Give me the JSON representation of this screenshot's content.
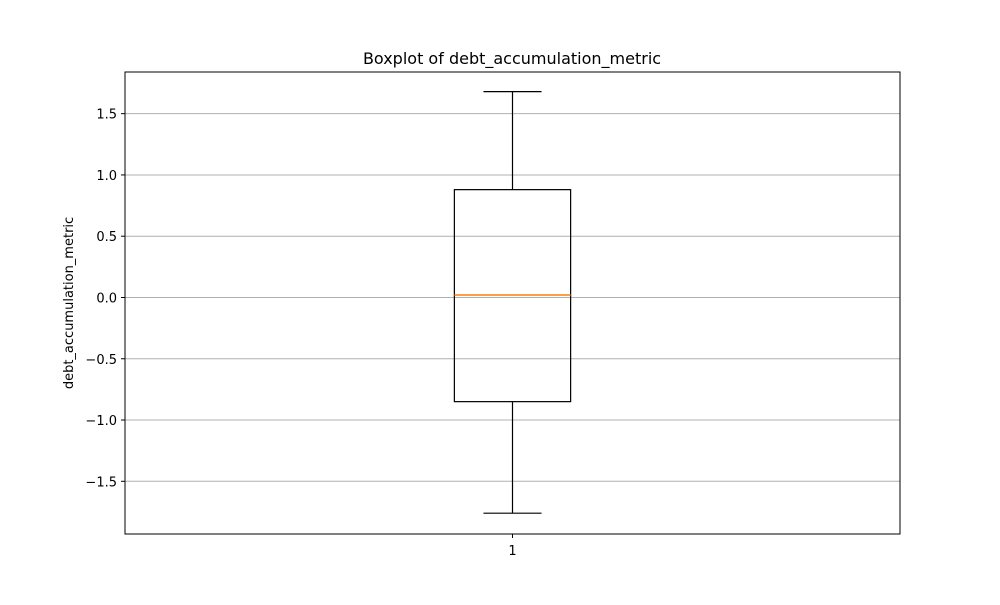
{
  "chart_data": {
    "type": "boxplot",
    "title": "Boxplot of debt_accumulation_metric",
    "xlabel": "",
    "ylabel": "debt_accumulation_metric",
    "categories": [
      "1"
    ],
    "ylim": [
      -1.93,
      1.84
    ],
    "yticks": [
      -1.5,
      -1.0,
      -0.5,
      0.0,
      0.5,
      1.0,
      1.5
    ],
    "ytick_labels": [
      "−1.5",
      "−1.0",
      "−0.5",
      "0.0",
      "0.5",
      "1.0",
      "1.5"
    ],
    "grid": {
      "y": true,
      "x": false
    },
    "boxes": [
      {
        "category": "1",
        "whisker_low": -1.76,
        "q1": -0.85,
        "median": 0.02,
        "q3": 0.88,
        "whisker_high": 1.68,
        "outliers": []
      }
    ],
    "colors": {
      "box": "#000000",
      "whisker": "#000000",
      "median": "#ff7f0e",
      "grid": "#b0b0b0"
    }
  }
}
